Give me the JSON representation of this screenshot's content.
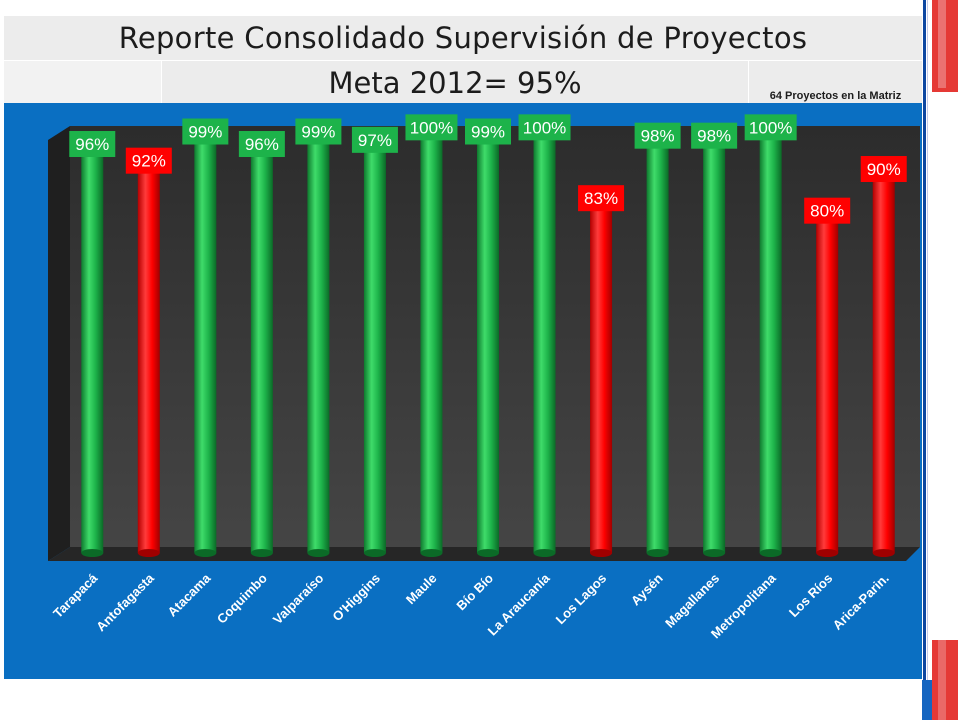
{
  "slide": {
    "title": "Reporte Consolidado Supervisión de Proyectos",
    "subtitle": "Meta 2012= 95%",
    "note": "64 Proyectos en la Matriz"
  },
  "colors": {
    "panel": "#0a6fc2",
    "above_goal": "#1db34a",
    "below_goal": "#ff0000",
    "floor": "#262626",
    "wall": "#3a3a3a",
    "accent_red": "#e53935",
    "accent_blue": "#1565c0"
  },
  "chart_data": {
    "type": "bar",
    "title": "",
    "xlabel": "",
    "ylabel": "",
    "ylim": [
      0,
      100
    ],
    "grid": false,
    "legend": "none",
    "goal": 95,
    "categories": [
      "Tarapacá",
      "Antofagasta",
      "Atacama",
      "Coquimbo",
      "Valparaíso",
      "O'Higgins",
      "Maule",
      "Bío Bío",
      "La Araucanía",
      "Los Lagos",
      "Aysén",
      "Magallanes",
      "Metropolitana",
      "Los Ríos",
      "Arica-Parin."
    ],
    "values": [
      96,
      92,
      99,
      96,
      99,
      97,
      100,
      99,
      100,
      83,
      98,
      98,
      100,
      80,
      90
    ],
    "labels": [
      "96%",
      "92%",
      "99%",
      "96%",
      "99%",
      "97%",
      "100%",
      "99%",
      "100%",
      "83%",
      "98%",
      "98%",
      "100%",
      "80%",
      "90%"
    ]
  }
}
